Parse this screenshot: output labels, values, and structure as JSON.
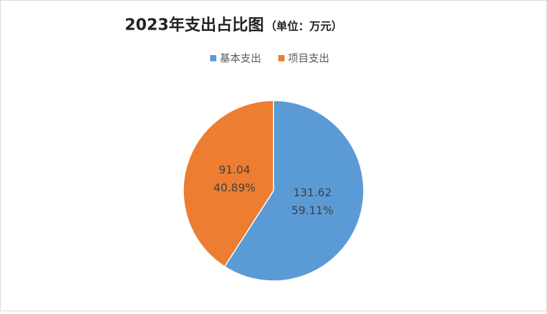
{
  "chart_data": {
    "type": "pie",
    "title": "2023年支出占比图",
    "unit": "（单位：万元）",
    "categories": [
      "基本支出",
      "项目支出"
    ],
    "values": [
      131.62,
      91.04
    ],
    "percent_labels": [
      "59.11%",
      "40.89%"
    ],
    "colors": [
      "#5b9bd5",
      "#ed7d31"
    ],
    "legend": "top"
  }
}
